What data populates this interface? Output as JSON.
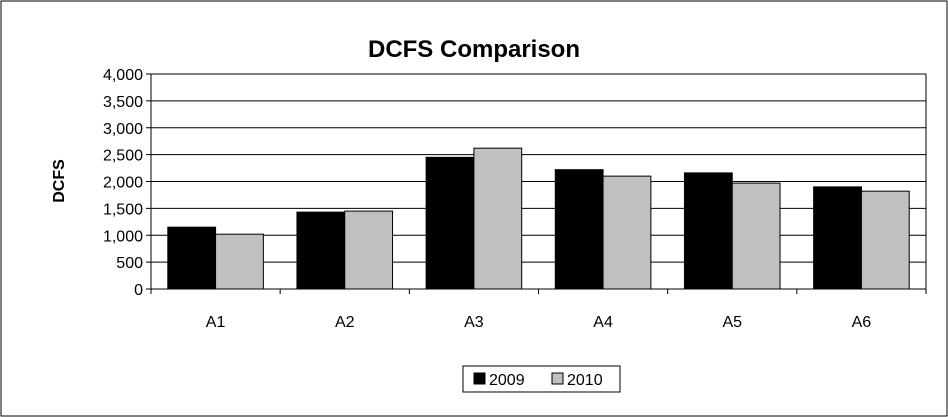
{
  "chart_data": {
    "type": "bar",
    "title": "DCFS Comparison",
    "xlabel": "",
    "ylabel": "DCFS",
    "categories": [
      "A1",
      "A2",
      "A3",
      "A4",
      "A5",
      "A6"
    ],
    "series": [
      {
        "name": "2009",
        "color": "#000000",
        "values": [
          1150,
          1430,
          2450,
          2220,
          2160,
          1900
        ]
      },
      {
        "name": "2010",
        "color": "#c0c0c0",
        "values": [
          1020,
          1450,
          2620,
          2100,
          1970,
          1820
        ]
      }
    ],
    "ylim": [
      0,
      4000
    ],
    "yticks": [
      0,
      500,
      1000,
      1500,
      2000,
      2500,
      3000,
      3500,
      4000
    ],
    "ytick_labels": [
      "0",
      "500",
      "1,000",
      "1,500",
      "2,000",
      "2,500",
      "3,000",
      "3,500",
      "4,000"
    ],
    "grid": true,
    "legend_position": "bottom"
  }
}
